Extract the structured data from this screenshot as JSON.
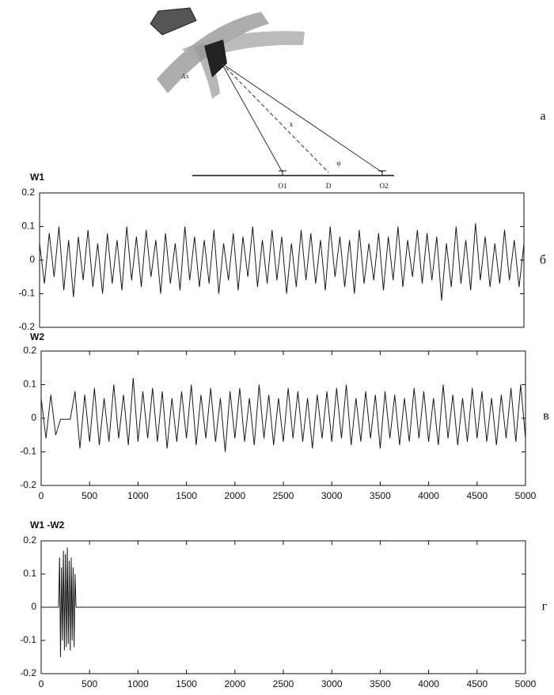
{
  "diagram": {
    "labels": [
      "O1",
      "D",
      "O2",
      "Δx",
      "x",
      "φ"
    ],
    "panel_letters": [
      "а",
      "б",
      "в",
      "г"
    ]
  },
  "chart_data": [
    {
      "type": "line",
      "title": "W1",
      "color": "#1a1a1a",
      "x": [
        0,
        50,
        100,
        150,
        200,
        250,
        300,
        350,
        400,
        450,
        500,
        550,
        600,
        650,
        700,
        750,
        800,
        850,
        900,
        950,
        1000,
        1050,
        1100,
        1150,
        1200,
        1250,
        1300,
        1350,
        1400,
        1450,
        1500,
        1550,
        1600,
        1650,
        1700,
        1750,
        1800,
        1850,
        1900,
        1950,
        2000,
        2050,
        2100,
        2150,
        2200,
        2250,
        2300,
        2350,
        2400,
        2450,
        2500,
        2550,
        2600,
        2650,
        2700,
        2750,
        2800,
        2850,
        2900,
        2950,
        3000,
        3050,
        3100,
        3150,
        3200,
        3250,
        3300,
        3350,
        3400,
        3450,
        3500,
        3550,
        3600,
        3650,
        3700,
        3750,
        3800,
        3850,
        3900,
        3950,
        4000,
        4050,
        4100,
        4150,
        4200,
        4250,
        4300,
        4350,
        4400,
        4450,
        4500,
        4550,
        4600,
        4650,
        4700,
        4750,
        4800,
        4850,
        4900,
        4950,
        5000
      ],
      "values": [
        0.05,
        -0.07,
        0.08,
        -0.05,
        0.1,
        -0.09,
        0.06,
        -0.11,
        0.07,
        -0.06,
        0.09,
        -0.08,
        0.05,
        -0.1,
        0.08,
        -0.07,
        0.06,
        -0.09,
        0.1,
        -0.06,
        0.07,
        -0.08,
        0.09,
        -0.05,
        0.06,
        -0.1,
        0.08,
        -0.07,
        0.05,
        -0.09,
        0.1,
        -0.06,
        0.07,
        -0.08,
        0.06,
        -0.07,
        0.09,
        -0.1,
        0.05,
        -0.06,
        0.08,
        -0.09,
        0.07,
        -0.05,
        0.1,
        -0.08,
        0.06,
        -0.07,
        0.09,
        -0.06,
        0.07,
        -0.1,
        0.05,
        -0.08,
        0.09,
        -0.06,
        0.08,
        -0.07,
        0.06,
        -0.09,
        0.1,
        -0.05,
        0.07,
        -0.08,
        0.06,
        -0.1,
        0.09,
        -0.07,
        0.05,
        -0.06,
        0.08,
        -0.09,
        0.07,
        -0.06,
        0.1,
        -0.08,
        0.06,
        -0.05,
        0.09,
        -0.07,
        0.08,
        -0.06,
        0.07,
        -0.12,
        0.05,
        -0.08,
        0.1,
        -0.07,
        0.06,
        -0.09,
        0.11,
        -0.06,
        0.07,
        -0.08,
        0.05,
        -0.07,
        0.09,
        -0.06,
        0.06,
        -0.08,
        0.05
      ],
      "xlim": [
        0,
        5000
      ],
      "ylim": [
        -0.2,
        0.2
      ],
      "yticks": [
        -0.2,
        -0.1,
        0,
        0.1,
        0.2
      ]
    },
    {
      "type": "line",
      "title": "W2",
      "color": "#1a1a1a",
      "x": [
        0,
        50,
        100,
        150,
        200,
        250,
        300,
        350,
        400,
        450,
        500,
        550,
        600,
        650,
        700,
        750,
        800,
        850,
        900,
        950,
        1000,
        1050,
        1100,
        1150,
        1200,
        1250,
        1300,
        1350,
        1400,
        1450,
        1500,
        1550,
        1600,
        1650,
        1700,
        1750,
        1800,
        1850,
        1900,
        1950,
        2000,
        2050,
        2100,
        2150,
        2200,
        2250,
        2300,
        2350,
        2400,
        2450,
        2500,
        2550,
        2600,
        2650,
        2700,
        2750,
        2800,
        2850,
        2900,
        2950,
        3000,
        3050,
        3100,
        3150,
        3200,
        3250,
        3300,
        3350,
        3400,
        3450,
        3500,
        3550,
        3600,
        3650,
        3700,
        3750,
        3800,
        3850,
        3900,
        3950,
        4000,
        4050,
        4100,
        4150,
        4200,
        4250,
        4300,
        4350,
        4400,
        4450,
        4500,
        4550,
        4600,
        4650,
        4700,
        4750,
        4800,
        4850,
        4900,
        4950,
        5000
      ],
      "values": [
        0.06,
        -0.06,
        0.07,
        -0.05,
        -0.003,
        -0.003,
        -0.003,
        0.08,
        -0.09,
        0.07,
        -0.07,
        0.09,
        -0.08,
        0.06,
        -0.07,
        0.1,
        -0.06,
        0.07,
        -0.08,
        0.12,
        -0.07,
        0.08,
        -0.06,
        0.09,
        -0.07,
        0.08,
        -0.09,
        0.06,
        -0.07,
        0.08,
        -0.06,
        0.1,
        -0.08,
        0.07,
        -0.06,
        0.09,
        -0.07,
        0.06,
        -0.1,
        0.08,
        -0.06,
        0.09,
        -0.07,
        0.06,
        -0.08,
        0.1,
        -0.06,
        0.07,
        -0.08,
        0.06,
        -0.07,
        0.09,
        -0.06,
        0.08,
        -0.07,
        0.06,
        -0.09,
        0.07,
        -0.06,
        0.08,
        -0.07,
        0.09,
        -0.06,
        0.1,
        -0.08,
        0.06,
        -0.07,
        0.08,
        -0.06,
        0.07,
        -0.09,
        0.08,
        -0.06,
        0.07,
        -0.08,
        0.06,
        -0.07,
        0.09,
        -0.06,
        0.08,
        -0.07,
        0.06,
        -0.08,
        0.1,
        -0.06,
        0.07,
        -0.08,
        0.06,
        -0.07,
        0.09,
        -0.06,
        0.08,
        -0.07,
        0.06,
        -0.08,
        0.07,
        -0.06,
        0.09,
        -0.07,
        0.1,
        -0.06
      ],
      "xlim": [
        0,
        5000
      ],
      "ylim": [
        -0.2,
        0.2
      ],
      "yticks": [
        -0.2,
        -0.1,
        0,
        0.1,
        0.2
      ],
      "xticks": [
        0,
        500,
        1000,
        1500,
        2000,
        2500,
        3000,
        3500,
        4000,
        4500,
        5000
      ]
    },
    {
      "type": "line",
      "title": "W1 -W2",
      "color": "#1a1a1a",
      "x": [
        0,
        150,
        180,
        190,
        200,
        210,
        220,
        230,
        240,
        250,
        260,
        270,
        280,
        290,
        300,
        310,
        320,
        330,
        340,
        350,
        360,
        5000
      ],
      "values": [
        0,
        0,
        0,
        0.15,
        -0.15,
        0.12,
        -0.1,
        0.17,
        -0.13,
        0.16,
        -0.12,
        0.18,
        -0.11,
        0.14,
        -0.13,
        0.15,
        -0.1,
        0.12,
        -0.12,
        0.1,
        0,
        0
      ],
      "xlim": [
        0,
        5000
      ],
      "ylim": [
        -0.2,
        0.2
      ],
      "yticks": [
        -0.2,
        -0.1,
        0,
        0.1,
        0.2
      ],
      "xticks": [
        0,
        500,
        1000,
        1500,
        2000,
        2500,
        3000,
        3500,
        4000,
        4500,
        5000
      ]
    }
  ]
}
